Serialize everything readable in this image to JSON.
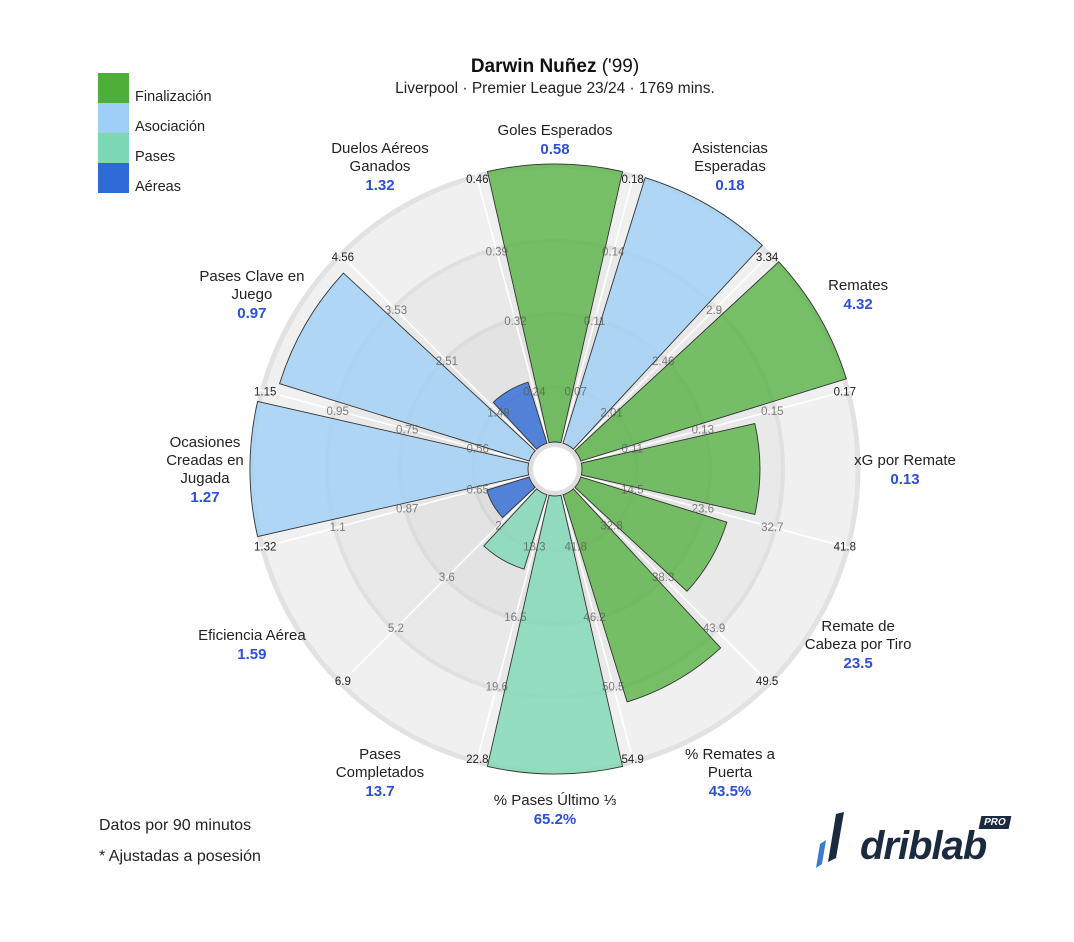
{
  "header": {
    "player": "Darwin Nuñez",
    "birth": "('99)",
    "subtitle": "Liverpool · Premier League 23/24 · 1769 mins."
  },
  "legend": [
    {
      "label": "Finalización",
      "color": "#4daf3a"
    },
    {
      "label": "Asociación",
      "color": "#9fcff5"
    },
    {
      "label": "Pases",
      "color": "#7dd8b5"
    },
    {
      "label": "Aéreas",
      "color": "#2e6ad6"
    }
  ],
  "footnotes": [
    "Datos por 90 minutos",
    "* Ajustadas a posesión"
  ],
  "brand": {
    "name": "driblab",
    "badge": "PRO"
  },
  "chart_data": {
    "type": "polar-bar",
    "categories": [
      {
        "label": [
          "Goles Esperados"
        ],
        "value": "0.58",
        "group": "Finalización",
        "fill": 1.0,
        "ticks": [
          "0.24",
          "0.32",
          "0.39",
          "0.46"
        ]
      },
      {
        "label": [
          "Asistencias",
          "Esperadas"
        ],
        "value": "0.18",
        "group": "Asociación",
        "fill": 1.0,
        "ticks": [
          "0.07",
          "0.11",
          "0.14",
          "0.18"
        ]
      },
      {
        "label": [
          "Remates"
        ],
        "value": "4.32",
        "group": "Finalización",
        "fill": 1.0,
        "ticks": [
          "2.01",
          "2.46",
          "2.9",
          "3.34"
        ]
      },
      {
        "label": [
          "xG por Remate"
        ],
        "value": "0.13",
        "group": "Finalización",
        "fill": 0.64,
        "ticks": [
          "0.11",
          "0.13",
          "0.15",
          "0.17"
        ]
      },
      {
        "label": [
          "Remate de",
          "Cabeza por Tiro"
        ],
        "value": "23.5",
        "group": "Finalización",
        "fill": 0.55,
        "ticks": [
          "14.5",
          "23.6",
          "32.7",
          "41.8"
        ]
      },
      {
        "label": [
          "% Remates a",
          "Puerta"
        ],
        "value": "43.5%",
        "group": "Finalización",
        "fill": 0.78,
        "ticks": [
          "32.8",
          "38.3",
          "43.9",
          "49.5"
        ]
      },
      {
        "label": [
          "% Pases Último ⅓"
        ],
        "value": "65.2%",
        "group": "Pases",
        "fill": 1.0,
        "ticks": [
          "41.8",
          "46.2",
          "50.5",
          "54.9"
        ]
      },
      {
        "label": [
          "Pases",
          "Completados"
        ],
        "value": "13.7",
        "group": "Pases",
        "fill": 0.28,
        "ticks": [
          "13.3",
          "16.5",
          "19.6",
          "22.8"
        ]
      },
      {
        "label": [
          "Eficiencia Aérea"
        ],
        "value": "1.59",
        "group": "Aéreas",
        "fill": 0.16,
        "ticks": [
          "2",
          "3.6",
          "5.2",
          "6.9"
        ]
      },
      {
        "label": [
          "Ocasiones",
          "Creadas en",
          "Jugada"
        ],
        "value": "1.27",
        "group": "Asociación",
        "fill": 1.0,
        "ticks": [
          "0.65",
          "0.87",
          "1.1",
          "1.32"
        ]
      },
      {
        "label": [
          "Pases Clave en",
          "Juego"
        ],
        "value": "0.97",
        "group": "Asociación",
        "fill": 0.94,
        "ticks": [
          "0.56",
          "0.75",
          "0.95",
          "1.15"
        ]
      },
      {
        "label": [
          "Duelos Aéreos",
          "Ganados"
        ],
        "value": "1.32",
        "group": "Aéreas",
        "fill": 0.23,
        "ticks": [
          "1.49",
          "2.51",
          "3.53",
          "4.56"
        ]
      }
    ]
  }
}
